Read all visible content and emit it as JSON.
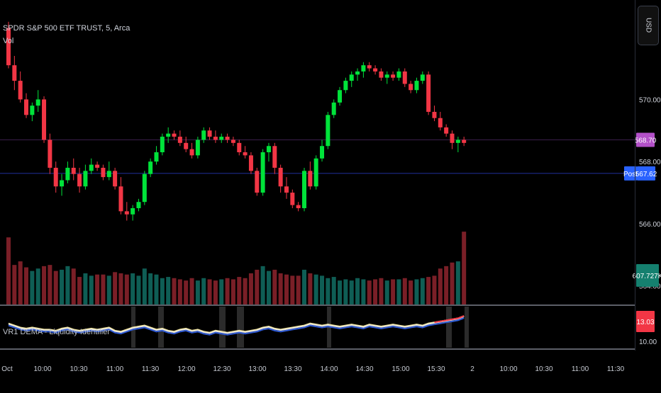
{
  "header": {
    "symbol_line": "SPDR S&P 500 ETF TRUST, 5, Arca",
    "volume_label": "Vol"
  },
  "indicator": {
    "label": "VR1 DEMA - Liquidity Identifier"
  },
  "currency_button": "USD",
  "price_axis": {
    "ticks": [
      "570.00",
      "568.00",
      "566.00",
      "564.00"
    ],
    "last_price_tag": "568.70",
    "post_tag_label": "Post",
    "post_price": "567.62",
    "volume_tag": "607.727K",
    "indicator_value_tag": "13.03",
    "indicator_tick": "10.00"
  },
  "time_axis": {
    "labels": [
      "Oct",
      "10:00",
      "10:30",
      "11:00",
      "11:30",
      "12:00",
      "12:30",
      "13:00",
      "13:30",
      "14:00",
      "14:30",
      "15:00",
      "15:30",
      "2",
      "10:00",
      "10:30",
      "11:00",
      "11:30"
    ]
  },
  "colors": {
    "up": "#00e33a",
    "down": "#f23645",
    "vol_up": "#0f5e55",
    "vol_down": "#7a1f27",
    "post_line": "#1e2a8a",
    "last_line": "#3a1e4a",
    "last_tag": "#b350c8",
    "post_tag": "#2962ff",
    "vol_tag": "#15806f",
    "ind_tag": "#f23645"
  },
  "chart_data": {
    "type": "candlestick",
    "interval": "5 minutes",
    "x": [
      "09:30",
      "09:35",
      "09:40",
      "09:45",
      "09:50",
      "09:55",
      "10:00",
      "10:05",
      "10:10",
      "10:15",
      "10:20",
      "10:25",
      "10:30",
      "10:35",
      "10:40",
      "10:45",
      "10:50",
      "10:55",
      "11:00",
      "11:05",
      "11:10",
      "11:15",
      "11:20",
      "11:25",
      "11:30",
      "11:35",
      "11:40",
      "11:45",
      "11:50",
      "11:55",
      "12:00",
      "12:05",
      "12:10",
      "12:15",
      "12:20",
      "12:25",
      "12:30",
      "12:35",
      "12:40",
      "12:45",
      "12:50",
      "12:55",
      "13:00",
      "13:05",
      "13:10",
      "13:15",
      "13:20",
      "13:25",
      "13:30",
      "13:35",
      "13:40",
      "13:45",
      "13:50",
      "13:55",
      "14:00",
      "14:05",
      "14:10",
      "14:15",
      "14:20",
      "14:25",
      "14:30",
      "14:35",
      "14:40",
      "14:45",
      "14:50",
      "14:55",
      "15:00",
      "15:05",
      "15:10",
      "15:15",
      "15:20",
      "15:25",
      "15:30",
      "15:35",
      "15:40",
      "15:45",
      "15:50",
      "15:55"
    ],
    "ohlc": [
      [
        572.3,
        572.5,
        571.0,
        571.1
      ],
      [
        571.1,
        571.4,
        570.3,
        570.6
      ],
      [
        570.6,
        570.9,
        569.9,
        570.0
      ],
      [
        570.0,
        570.2,
        569.4,
        569.5
      ],
      [
        569.5,
        569.9,
        569.3,
        569.8
      ],
      [
        569.8,
        570.3,
        569.6,
        570.0
      ],
      [
        570.0,
        570.1,
        568.6,
        568.7
      ],
      [
        568.7,
        568.9,
        567.6,
        567.8
      ],
      [
        567.8,
        568.0,
        567.0,
        567.2
      ],
      [
        567.2,
        567.6,
        566.9,
        567.4
      ],
      [
        567.4,
        568.0,
        567.3,
        567.8
      ],
      [
        567.8,
        568.1,
        567.4,
        567.6
      ],
      [
        567.6,
        567.8,
        567.0,
        567.2
      ],
      [
        567.2,
        567.9,
        567.1,
        567.7
      ],
      [
        567.7,
        568.1,
        567.6,
        567.9
      ],
      [
        567.9,
        568.0,
        567.7,
        567.8
      ],
      [
        567.8,
        567.9,
        567.4,
        567.5
      ],
      [
        567.5,
        568.0,
        567.4,
        567.7
      ],
      [
        567.7,
        567.8,
        567.1,
        567.2
      ],
      [
        567.2,
        567.5,
        566.3,
        566.4
      ],
      [
        566.4,
        566.7,
        566.1,
        566.3
      ],
      [
        566.3,
        566.6,
        566.1,
        566.5
      ],
      [
        566.5,
        566.8,
        566.4,
        566.7
      ],
      [
        566.7,
        567.7,
        566.6,
        567.6
      ],
      [
        567.6,
        568.1,
        567.5,
        568.0
      ],
      [
        568.0,
        568.5,
        567.9,
        568.3
      ],
      [
        568.3,
        568.9,
        568.2,
        568.8
      ],
      [
        568.8,
        569.1,
        568.6,
        568.9
      ],
      [
        568.9,
        569.0,
        568.7,
        568.8
      ],
      [
        568.8,
        569.0,
        568.5,
        568.6
      ],
      [
        568.6,
        568.8,
        568.3,
        568.4
      ],
      [
        568.4,
        568.6,
        568.1,
        568.2
      ],
      [
        568.2,
        568.8,
        568.1,
        568.7
      ],
      [
        568.7,
        569.1,
        568.6,
        569.0
      ],
      [
        569.0,
        569.1,
        568.7,
        568.8
      ],
      [
        568.8,
        569.0,
        568.6,
        568.7
      ],
      [
        568.7,
        568.9,
        568.6,
        568.8
      ],
      [
        568.8,
        568.9,
        568.6,
        568.7
      ],
      [
        568.7,
        568.8,
        568.5,
        568.6
      ],
      [
        568.6,
        568.7,
        568.2,
        568.3
      ],
      [
        568.3,
        568.5,
        568.1,
        568.2
      ],
      [
        568.2,
        568.3,
        567.6,
        567.7
      ],
      [
        567.7,
        567.8,
        566.9,
        567.0
      ],
      [
        567.0,
        568.4,
        566.9,
        568.3
      ],
      [
        568.3,
        568.6,
        568.0,
        568.5
      ],
      [
        568.5,
        568.6,
        567.6,
        567.8
      ],
      [
        567.8,
        567.9,
        567.0,
        567.2
      ],
      [
        567.2,
        567.5,
        566.8,
        567.0
      ],
      [
        567.0,
        567.1,
        566.5,
        566.6
      ],
      [
        566.6,
        566.7,
        566.4,
        566.5
      ],
      [
        566.5,
        567.8,
        566.4,
        567.7
      ],
      [
        567.7,
        568.0,
        567.1,
        567.2
      ],
      [
        567.2,
        568.2,
        567.1,
        568.1
      ],
      [
        568.1,
        568.7,
        568.0,
        568.5
      ],
      [
        568.5,
        569.6,
        568.4,
        569.5
      ],
      [
        569.5,
        570.0,
        569.4,
        569.9
      ],
      [
        569.9,
        570.4,
        569.8,
        570.3
      ],
      [
        570.3,
        570.7,
        570.2,
        570.6
      ],
      [
        570.6,
        570.9,
        570.4,
        570.8
      ],
      [
        570.8,
        571.0,
        570.6,
        570.9
      ],
      [
        570.9,
        571.2,
        570.7,
        571.1
      ],
      [
        571.1,
        571.2,
        570.9,
        571.0
      ],
      [
        571.0,
        571.1,
        570.8,
        570.9
      ],
      [
        570.9,
        571.0,
        570.6,
        570.7
      ],
      [
        570.7,
        570.9,
        570.5,
        570.8
      ],
      [
        570.8,
        570.9,
        570.6,
        570.7
      ],
      [
        570.7,
        571.0,
        570.6,
        570.9
      ],
      [
        570.9,
        571.0,
        570.4,
        570.5
      ],
      [
        570.5,
        570.6,
        570.2,
        570.3
      ],
      [
        570.3,
        570.7,
        570.2,
        570.6
      ],
      [
        570.6,
        570.9,
        570.5,
        570.8
      ],
      [
        570.8,
        570.9,
        569.5,
        569.6
      ],
      [
        569.6,
        569.8,
        569.3,
        569.4
      ],
      [
        569.4,
        569.6,
        569.0,
        569.1
      ],
      [
        569.1,
        569.2,
        568.8,
        568.9
      ],
      [
        568.9,
        569.0,
        568.4,
        568.6
      ],
      [
        568.6,
        568.8,
        568.3,
        568.7
      ],
      [
        568.7,
        568.8,
        568.5,
        568.6
      ]
    ],
    "volume_k": [
      560,
      330,
      360,
      310,
      280,
      300,
      320,
      330,
      280,
      290,
      320,
      300,
      230,
      260,
      240,
      250,
      250,
      240,
      270,
      260,
      250,
      260,
      240,
      300,
      260,
      250,
      220,
      230,
      220,
      210,
      200,
      220,
      200,
      220,
      210,
      200,
      210,
      220,
      210,
      230,
      220,
      260,
      290,
      320,
      280,
      290,
      260,
      250,
      240,
      240,
      290,
      260,
      250,
      240,
      220,
      230,
      200,
      210,
      200,
      220,
      210,
      200,
      210,
      220,
      200,
      210,
      210,
      220,
      200,
      210,
      220,
      230,
      240,
      300,
      320,
      350,
      360,
      607.727
    ],
    "indicator_values": [
      12.3,
      12.1,
      11.9,
      11.8,
      11.9,
      11.8,
      11.7,
      11.7,
      11.6,
      11.8,
      11.9,
      11.7,
      11.6,
      11.7,
      11.8,
      11.7,
      11.8,
      11.9,
      11.6,
      11.5,
      11.7,
      11.9,
      12.0,
      12.1,
      11.9,
      11.7,
      11.8,
      11.6,
      11.5,
      11.7,
      11.8,
      11.6,
      11.7,
      11.5,
      11.4,
      11.6,
      11.5,
      11.4,
      11.5,
      11.6,
      11.5,
      11.6,
      11.7,
      11.9,
      12.0,
      11.8,
      11.7,
      11.8,
      11.9,
      12.0,
      12.1,
      12.3,
      12.2,
      12.1,
      12.2,
      12.1,
      12.0,
      12.1,
      12.2,
      12.1,
      12.0,
      12.2,
      12.1,
      12.0,
      12.1,
      12.2,
      12.1,
      12.0,
      12.1,
      12.2,
      12.1,
      12.3,
      12.4,
      12.5,
      12.6,
      12.7,
      12.8,
      13.03
    ],
    "y_range": [
      563.4,
      573.2
    ],
    "indicator_range": [
      10.0,
      14.0
    ],
    "horizontal_lines": {
      "last_price": 568.7,
      "post_price": 567.62
    }
  }
}
